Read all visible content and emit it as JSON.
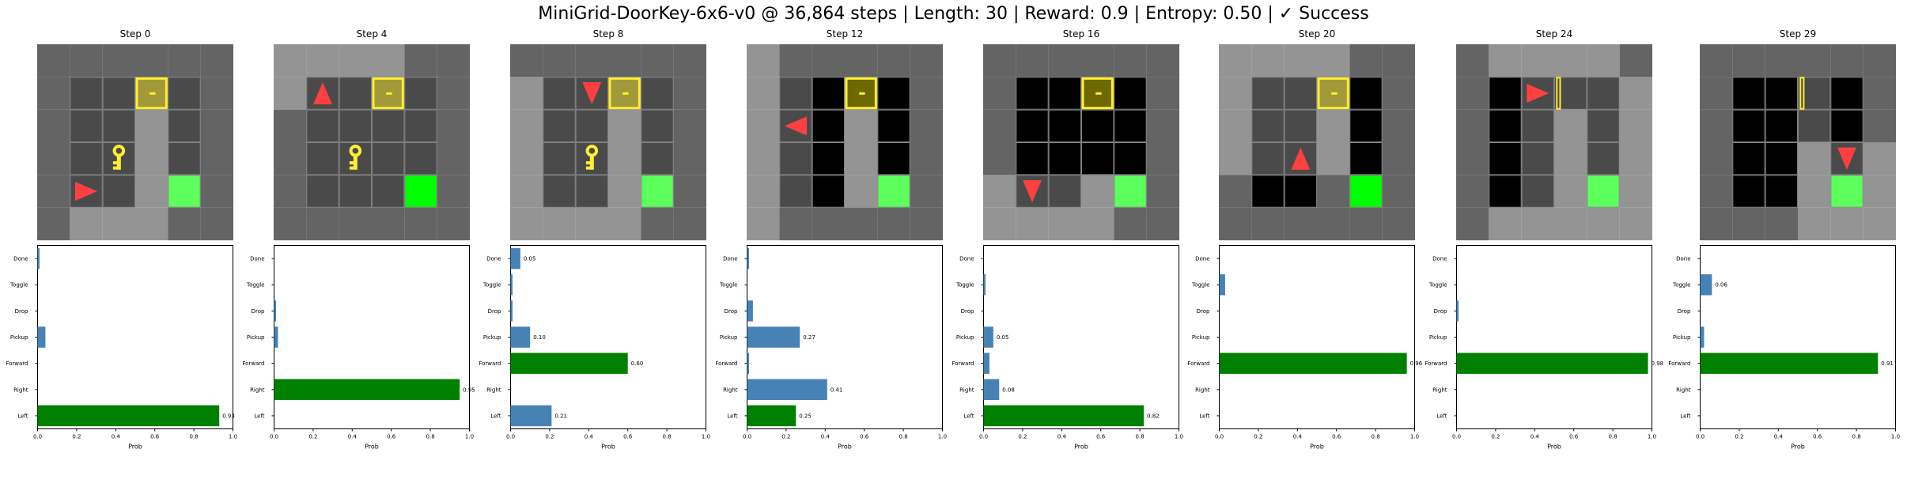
{
  "title": "MiniGrid-DoorKey-6x6-v0 @ 36,864 steps | Length: 30 | Reward: 0.9 | Entropy: 0.50 | ✓ Success",
  "colors": {
    "chosen_bar": "#008000",
    "other_bar": "#4682b4",
    "agent": "#ff4040",
    "key": "#ffee33",
    "goal": "#00ff00",
    "door_yellow": "#ffee33"
  },
  "chart_data": {
    "type": "bar",
    "orientation": "horizontal",
    "categories": [
      "Left",
      "Right",
      "Forward",
      "Pickup",
      "Drop",
      "Toggle",
      "Done"
    ],
    "xlabel": "Prob",
    "xlim": [
      0,
      1
    ],
    "xticks": [
      "0.0",
      "0.2",
      "0.4",
      "0.6",
      "0.8",
      "1.0"
    ],
    "panels": [
      {
        "title": "Step 0",
        "values": [
          0.93,
          0.0,
          0.0,
          0.04,
          0.0,
          0.0,
          0.01
        ],
        "chosen": "Left",
        "label": "0.93"
      },
      {
        "title": "Step 4",
        "values": [
          0.0,
          0.95,
          0.0,
          0.02,
          0.01,
          0.0,
          0.0
        ],
        "chosen": "Right",
        "label": "0.95"
      },
      {
        "title": "Step 8",
        "values": [
          0.21,
          0.0,
          0.6,
          0.1,
          0.01,
          0.01,
          0.05
        ],
        "chosen": "Forward",
        "labels": {
          "Left": "0.21",
          "Forward": "0.60",
          "Pickup": "0.10",
          "Done": "0.05"
        }
      },
      {
        "title": "Step 12",
        "values": [
          0.25,
          0.41,
          0.01,
          0.27,
          0.03,
          0.0,
          0.01
        ],
        "chosen": "Left",
        "labels": {
          "Left": "0.25",
          "Right": "0.41",
          "Pickup": "0.27"
        }
      },
      {
        "title": "Step 16",
        "values": [
          0.82,
          0.08,
          0.03,
          0.05,
          0.0,
          0.01,
          0.0
        ],
        "chosen": "Left",
        "labels": {
          "Left": "0.82",
          "Right": "0.08",
          "Pickup": "0.05"
        }
      },
      {
        "title": "Step 20",
        "values": [
          0.0,
          0.0,
          0.96,
          0.0,
          0.0,
          0.03,
          0.0
        ],
        "chosen": "Forward",
        "label": "0.96"
      },
      {
        "title": "Step 24",
        "values": [
          0.0,
          0.0,
          0.98,
          0.0,
          0.01,
          0.0,
          0.0
        ],
        "chosen": "Forward",
        "label": "0.98"
      },
      {
        "title": "Step 29",
        "values": [
          0.0,
          0.0,
          0.91,
          0.02,
          0.0,
          0.06,
          0.0
        ],
        "chosen": "Forward",
        "labels": {
          "Forward": "0.91",
          "Toggle": "0.06"
        }
      }
    ]
  },
  "grid_panels": [
    {
      "rows": [
        "WWWWWW",
        "WFFDFW",
        "WFFLFW",
        "WFKLFW",
        "WAFLGW",
        "WLLLWW"
      ],
      "door": "locked",
      "agent_dir": "right",
      "light_walls": []
    },
    {
      "rows": [
        "LLLLWW",
        "LAFDFW",
        "WFFFFW",
        "WFKFFW",
        "WFFFGW",
        "WWWWWW"
      ],
      "door": "locked",
      "agent_dir": "up",
      "light_walls": []
    },
    {
      "rows": [
        "WWWWWW",
        "LFADFW",
        "LFFLFW",
        "LFKLFW",
        "LFFLGW",
        "LLLLWW"
      ],
      "door": "locked",
      "agent_dir": "down",
      "light_walls": []
    },
    {
      "rows": [
        "LWWWWW",
        "LFBDBW",
        "LABLBW",
        "LFBLBW",
        "LFBLGW",
        "LWWWWW"
      ],
      "door": "locked_dark",
      "agent_dir": "left",
      "light_walls": []
    },
    {
      "rows": [
        "WWWWWW",
        "WBBDBW",
        "WBBBBW",
        "WBBBBW",
        "LAFLGW",
        "LLLLWW"
      ],
      "door": "locked_dark",
      "agent_dir": "down",
      "light_walls": []
    },
    {
      "rows": [
        "LLLLWW",
        "LFFDBW",
        "LFFLBW",
        "LFALBW",
        "WBBWGW",
        "WWWWWW"
      ],
      "door": "locked",
      "agent_dir": "up",
      "light_walls": []
    },
    {
      "rows": [
        "WLLLLW",
        "WBAOFL",
        "WBFLFL",
        "WBFLFL",
        "WBFLGL",
        "WLLLLL"
      ],
      "door": "open",
      "agent_dir": "right",
      "light_walls": []
    },
    {
      "rows": [
        "WWWWWW",
        "WBBOBW",
        "WBBFBW",
        "WBBLAL",
        "WBBLGL",
        "WWWLLL"
      ],
      "door": "open",
      "agent_dir": "down",
      "light_walls": []
    }
  ]
}
